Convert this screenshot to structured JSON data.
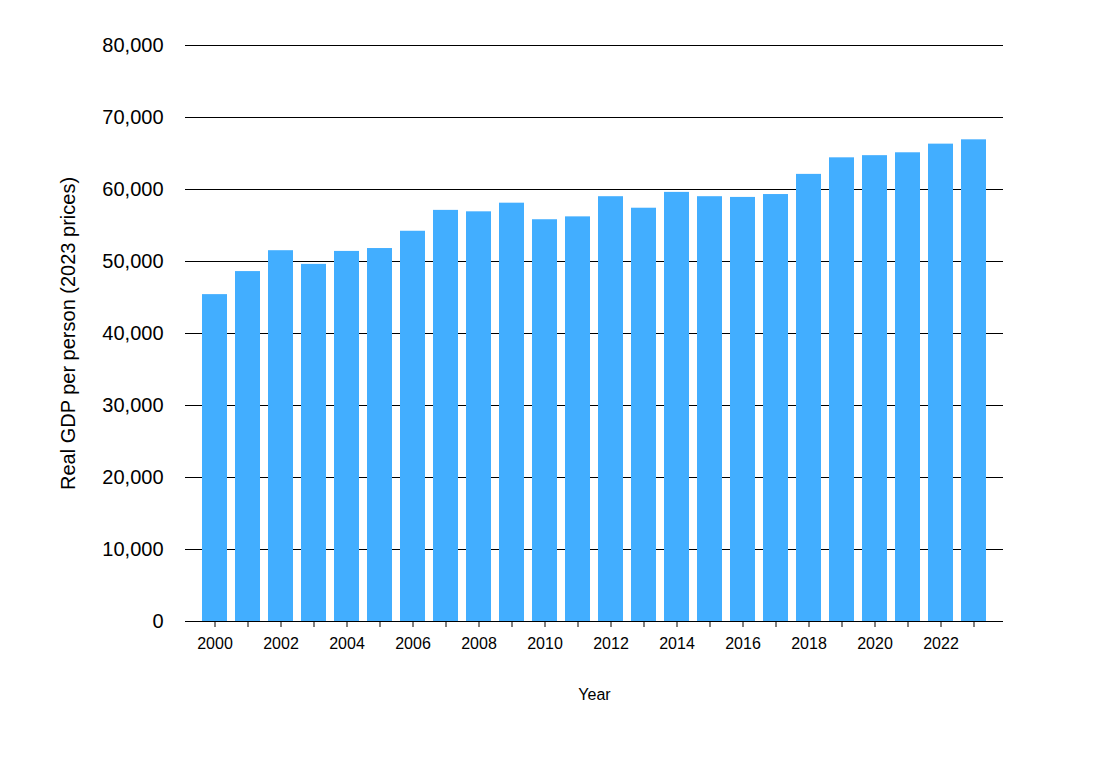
{
  "chart_data": {
    "type": "bar",
    "categories": [
      "2000",
      null,
      "2002",
      null,
      "2004",
      null,
      "2006",
      null,
      "2008",
      null,
      "2010",
      null,
      "2012",
      null,
      "2014",
      null,
      "2016",
      null,
      "2018",
      null,
      "2020",
      null,
      "2022",
      null
    ],
    "values": [
      45400,
      48600,
      51500,
      49600,
      51400,
      51800,
      54200,
      57100,
      56900,
      58100,
      55800,
      56200,
      59000,
      57400,
      59600,
      59000,
      58900,
      59300,
      62100,
      64400,
      64700,
      65100,
      66300,
      66900
    ],
    "color": "#42aeff",
    "x_label": "Year",
    "y_label": "Real GDP per person (2023 prices)",
    "ylim": [
      0,
      80000
    ],
    "yticks": [
      0,
      {
        "value": 10000,
        "label": "10,000"
      },
      {
        "value": 20000,
        "label": "20,000"
      },
      {
        "value": 30000,
        "label": "30,000"
      },
      {
        "value": 40000,
        "label": "40,000"
      },
      {
        "value": 50000,
        "label": "50,000"
      },
      {
        "value": 60000,
        "label": "60,000"
      },
      {
        "value": 70000,
        "label": "70,000"
      },
      {
        "value": 80000,
        "label": "80,000"
      }
    ],
    "grid": true
  }
}
